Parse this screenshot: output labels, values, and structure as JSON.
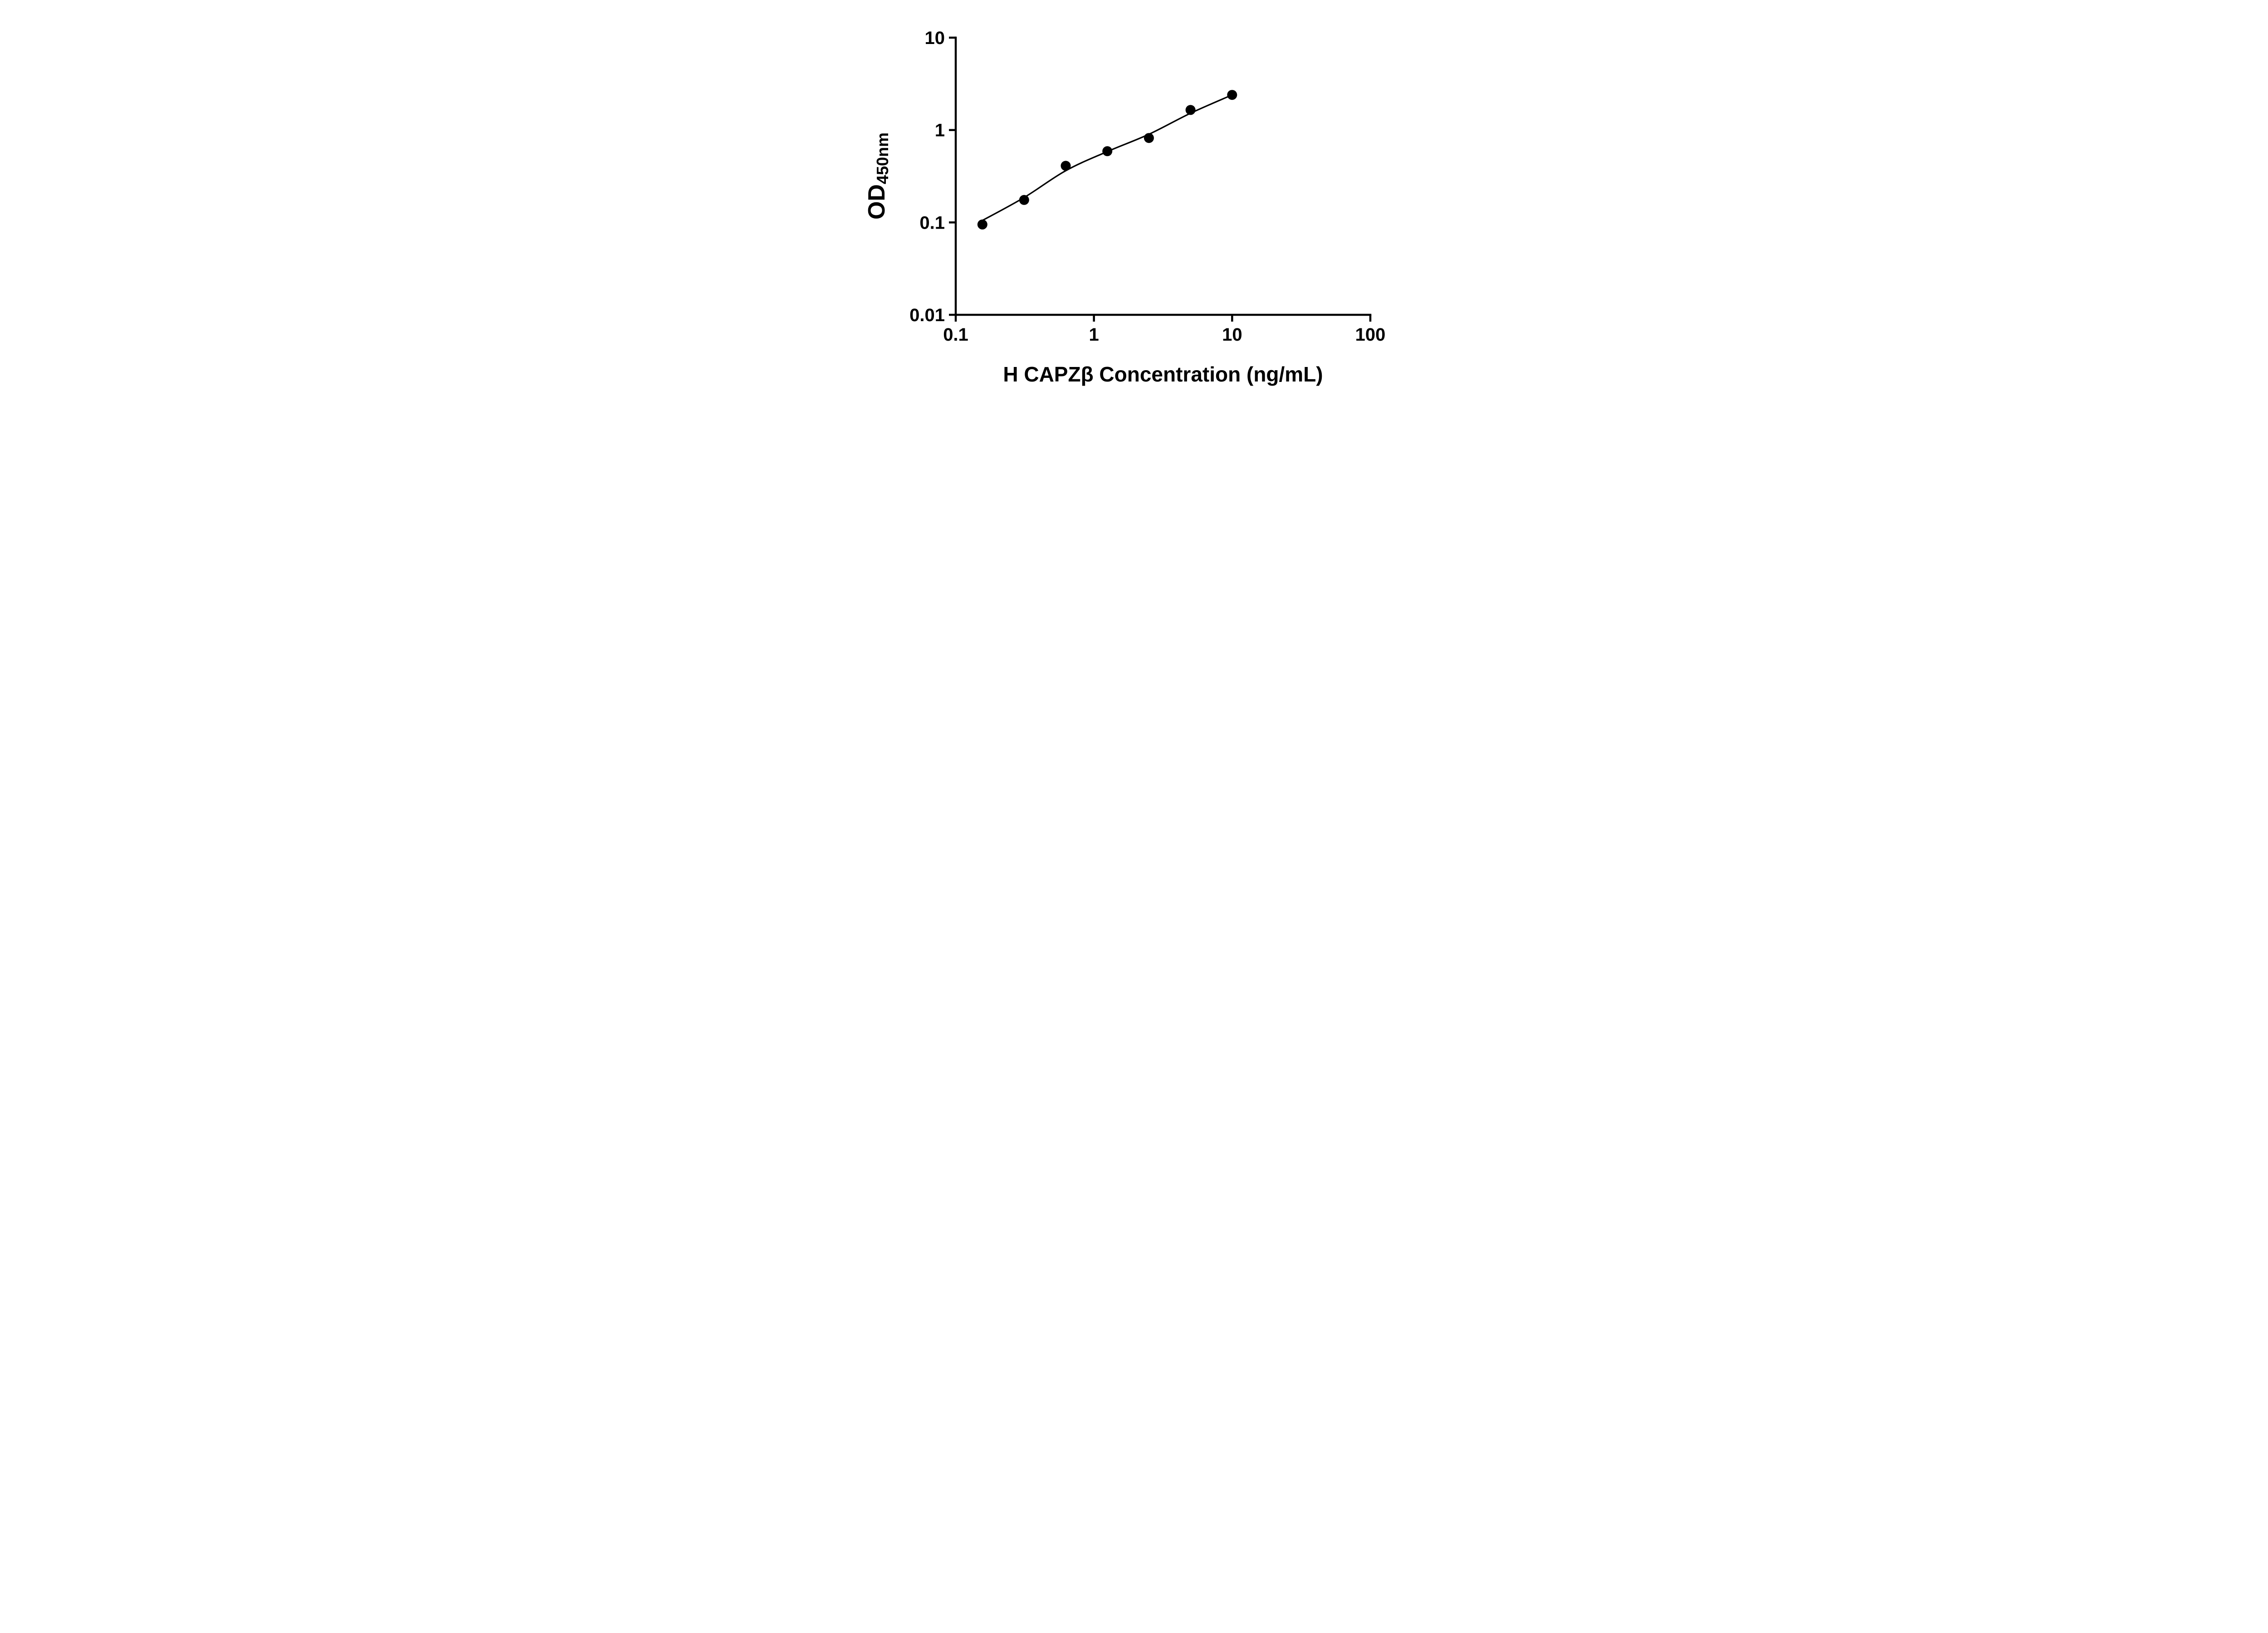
{
  "chart_data": {
    "type": "scatter",
    "title": "",
    "xlabel": "H CAPZβ Concentration (ng/mL)",
    "ylabel_main": "OD",
    "ylabel_sub": "450nm",
    "x_scale": "log",
    "y_scale": "log",
    "xlim": [
      0.1,
      100
    ],
    "ylim": [
      0.01,
      10
    ],
    "grid": false,
    "legend": false,
    "x_ticks": [
      {
        "value": 0.1,
        "label": "0.1"
      },
      {
        "value": 1,
        "label": "1"
      },
      {
        "value": 10,
        "label": "10"
      },
      {
        "value": 100,
        "label": "100"
      }
    ],
    "y_ticks": [
      {
        "value": 10,
        "label": "10"
      },
      {
        "value": 1,
        "label": "1"
      },
      {
        "value": 0.1,
        "label": "0.1"
      },
      {
        "value": 0.01,
        "label": "0.01"
      }
    ],
    "series": [
      {
        "name": "standard_points",
        "role": "scatter",
        "x": [
          0.156,
          0.3125,
          0.625,
          1.25,
          2.5,
          5,
          10
        ],
        "y": [
          0.095,
          0.175,
          0.41,
          0.59,
          0.82,
          1.65,
          2.4
        ]
      },
      {
        "name": "fit_line",
        "role": "line",
        "x": [
          0.156,
          0.3125,
          0.625,
          1.25,
          2.5,
          5,
          10
        ],
        "y": [
          0.105,
          0.186,
          0.363,
          0.585,
          0.9,
          1.52,
          2.4
        ]
      }
    ],
    "colors": {
      "points": "#000000",
      "line": "#000000",
      "axis": "#000000",
      "text": "#000000",
      "background": "#ffffff"
    }
  }
}
